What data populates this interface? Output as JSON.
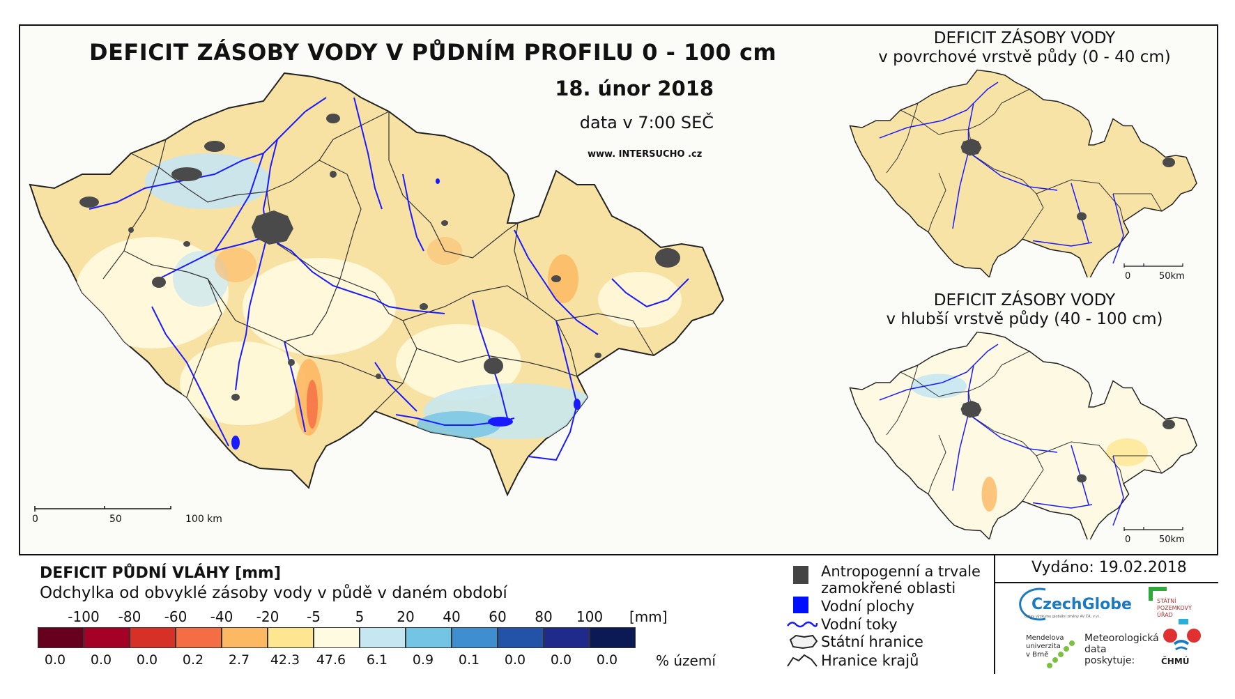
{
  "main": {
    "title": "DEFICIT ZÁSOBY VODY V PŮDNÍM PROFILU 0 - 100 cm",
    "date": "18. únor 2018",
    "data_time": "data v 7:00 SEČ",
    "website": "www. INTERSUCHO .cz",
    "scale_labels": [
      "0",
      "50",
      "100 km"
    ]
  },
  "inset_top": {
    "title_line1": "DEFICIT ZÁSOBY VODY",
    "title_line2": "v povrchové vrstvě půdy (0 - 40 cm)",
    "scale_labels": [
      "0",
      "50km"
    ]
  },
  "inset_bottom": {
    "title_line1": "DEFICIT ZÁSOBY VODY",
    "title_line2": "v hlubší vrstvě půdy (40 - 100 cm)",
    "scale_labels": [
      "0",
      "50km"
    ]
  },
  "legend": {
    "title": "DEFICIT PŮDNÍ VLÁHY [mm]",
    "subtitle": "Odchylka od obvyklé zásoby vody v půdě v daném období",
    "ticks": [
      "-100",
      "-80",
      "-60",
      "-40",
      "-20",
      "-5",
      "5",
      "20",
      "40",
      "60",
      "80",
      "100"
    ],
    "unit": "[mm]",
    "classes": [
      {
        "color": "#67001f",
        "pct": "0.0"
      },
      {
        "color": "#a50026",
        "pct": "0.0"
      },
      {
        "color": "#d73027",
        "pct": "0.0"
      },
      {
        "color": "#f46d43",
        "pct": "0.2"
      },
      {
        "color": "#fdb863",
        "pct": "2.7"
      },
      {
        "color": "#fee690",
        "pct": "42.3"
      },
      {
        "color": "#fffbe0",
        "pct": "47.6"
      },
      {
        "color": "#c6e6f2",
        "pct": "6.1"
      },
      {
        "color": "#74c4e6",
        "pct": "0.9"
      },
      {
        "color": "#3f8fd0",
        "pct": "0.1"
      },
      {
        "color": "#2353a8",
        "pct": "0.0"
      },
      {
        "color": "#1f2a8a",
        "pct": "0.0"
      },
      {
        "color": "#0b1a55",
        "pct": "0.0"
      }
    ],
    "pct_unit": "% území"
  },
  "key": {
    "anthropogenic_line1": "Antropogenní a trvale",
    "anthropogenic_line2": "zamokřené oblasti",
    "water_bodies": "Vodní plochy",
    "rivers": "Vodní toky",
    "state_border": "Státní hranice",
    "region_border": "Hranice krajů"
  },
  "issued": "Vydáno: 19.02.2018",
  "logos": {
    "czechglobe": "CzechGlobe",
    "czechglobe_sub": "Ústav výzkumu globální změny AV ČR, v.v.i.",
    "spu_line1": "STÁTNÍ",
    "spu_line2": "POZEMKOVÝ",
    "spu_line3": "ÚŘAD",
    "mendel_line1": "Mendelova",
    "mendel_line2": "univerzita",
    "mendel_line3": "v Brně",
    "met_line1": "Meteorologická",
    "met_line2": "data",
    "met_line3": "poskytuje:",
    "chmu": "ČHMÚ"
  },
  "colors": {
    "base_map": "#f6dd9a",
    "urban": "#555555",
    "river": "#1a1aff",
    "border": "#222222"
  }
}
